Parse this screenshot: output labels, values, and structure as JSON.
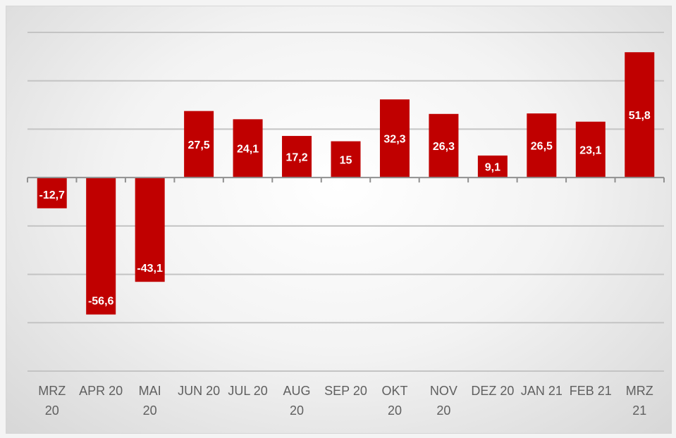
{
  "chart_data": {
    "type": "bar",
    "title": "",
    "xlabel": "",
    "ylabel": "",
    "categories": [
      "MRZ 20",
      "APR 20",
      "MAI 20",
      "JUN 20",
      "JUL 20",
      "AUG 20",
      "SEP 20",
      "OKT 20",
      "NOV 20",
      "DEZ 20",
      "JAN 21",
      "FEB 21",
      "MRZ 21"
    ],
    "category_label_lines": [
      [
        "MRZ",
        "20"
      ],
      [
        "APR 20"
      ],
      [
        "MAI",
        "20"
      ],
      [
        "JUN 20"
      ],
      [
        "JUL 20"
      ],
      [
        "AUG",
        "20"
      ],
      [
        "SEP 20"
      ],
      [
        "OKT",
        "20"
      ],
      [
        "NOV",
        "20"
      ],
      [
        "DEZ 20"
      ],
      [
        "JAN 21"
      ],
      [
        "FEB 21"
      ],
      [
        "MRZ",
        "21"
      ]
    ],
    "values": [
      -12.7,
      -56.6,
      -43.1,
      27.5,
      24.1,
      17.2,
      15,
      32.3,
      26.3,
      9.1,
      26.5,
      23.1,
      51.8
    ],
    "data_labels": [
      "-12,7",
      "-56,6",
      "-43,1",
      "27,5",
      "24,1",
      "17,2",
      "15",
      "32,3",
      "26,3",
      "9,1",
      "26,5",
      "23,1",
      "51,8"
    ],
    "ylim": [
      -80,
      60
    ],
    "gridlines": [
      60,
      40,
      20,
      0,
      -20,
      -40,
      -60,
      -80
    ],
    "y_tick_labels_shown": false,
    "grid": true,
    "legend": "none",
    "bar_color": "#c00000"
  }
}
